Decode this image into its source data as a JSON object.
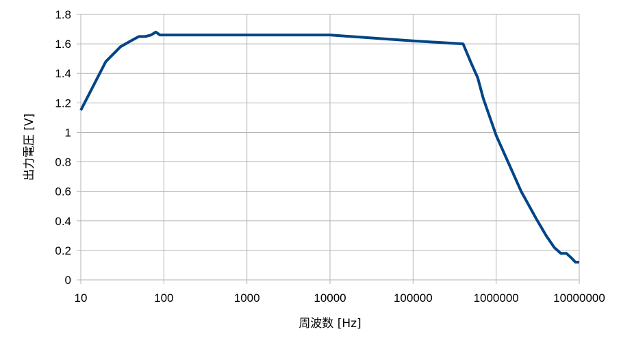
{
  "chart_data": {
    "type": "line",
    "title": "",
    "xlabel": "周波数 [Hz]",
    "ylabel": "出力電圧 [V]",
    "x_scale": "log",
    "xlim": [
      10,
      10000000
    ],
    "ylim": [
      0,
      1.8
    ],
    "x_tick_labels": [
      "10",
      "100",
      "1000",
      "10000",
      "100000",
      "1000000",
      "10000000"
    ],
    "y_tick_labels": [
      "0",
      "0.2",
      "0.4",
      "0.6",
      "0.8",
      "1",
      "1.2",
      "1.4",
      "1.6",
      "1.8"
    ],
    "grid": true,
    "legend": "none",
    "series": [
      {
        "color": "#004586",
        "x": [
          10,
          20,
          30,
          40,
          50,
          60,
          70,
          80,
          90,
          100,
          1000,
          10000,
          100000,
          400000,
          500000,
          600000,
          700000,
          1000000,
          2000000,
          3000000,
          4000000,
          5000000,
          6000000,
          7000000,
          8000000,
          9000000,
          10000000
        ],
        "y": [
          1.15,
          1.48,
          1.58,
          1.62,
          1.65,
          1.65,
          1.66,
          1.68,
          1.66,
          1.66,
          1.66,
          1.66,
          1.62,
          1.6,
          1.47,
          1.37,
          1.23,
          0.98,
          0.6,
          0.42,
          0.3,
          0.22,
          0.18,
          0.18,
          0.15,
          0.12,
          0.12
        ]
      }
    ]
  }
}
